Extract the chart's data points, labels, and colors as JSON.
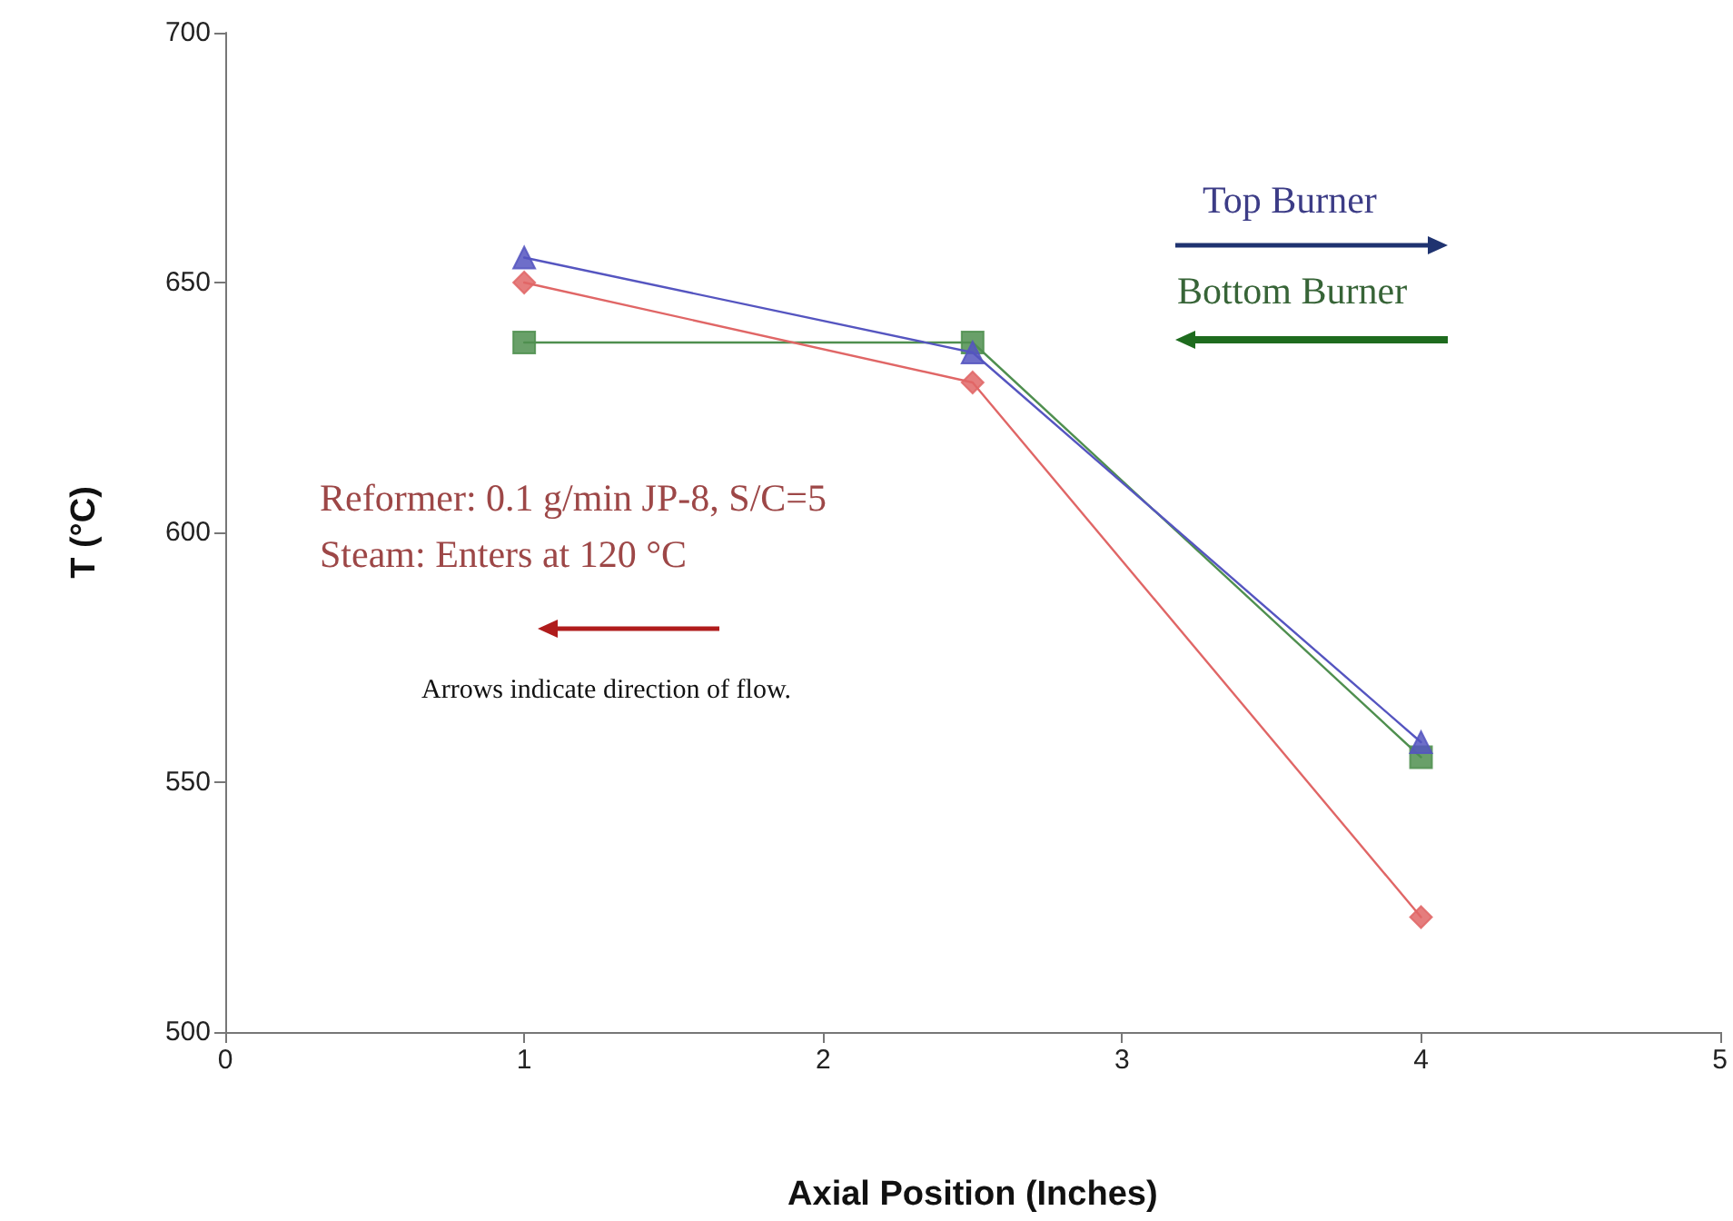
{
  "chart_data": {
    "type": "line",
    "xlabel": "Axial Position (Inches)",
    "ylabel": "T (°C)",
    "xlim": [
      0,
      5
    ],
    "xticks": [
      0,
      1,
      2,
      3,
      4,
      5
    ],
    "ylim": [
      500,
      700
    ],
    "yticks": [
      500,
      550,
      600,
      650,
      700
    ],
    "x": [
      1,
      2.5,
      4
    ],
    "series": [
      {
        "color": "#5555c0",
        "marker": "triangle",
        "values": [
          655,
          636,
          558
        ]
      },
      {
        "color": "#e06666",
        "marker": "diamond",
        "values": [
          650,
          630,
          523
        ]
      },
      {
        "color": "#4f8f4f",
        "marker": "square",
        "values": [
          638,
          638,
          555
        ]
      }
    ],
    "annotations": [
      "Top Burner",
      "Bottom Burner",
      "Reformer: 0.1 g/min JP-8, S/C=5",
      "Steam: Enters at 120 °C",
      "Arrows indicate direction of flow."
    ],
    "line_style": "solid"
  }
}
